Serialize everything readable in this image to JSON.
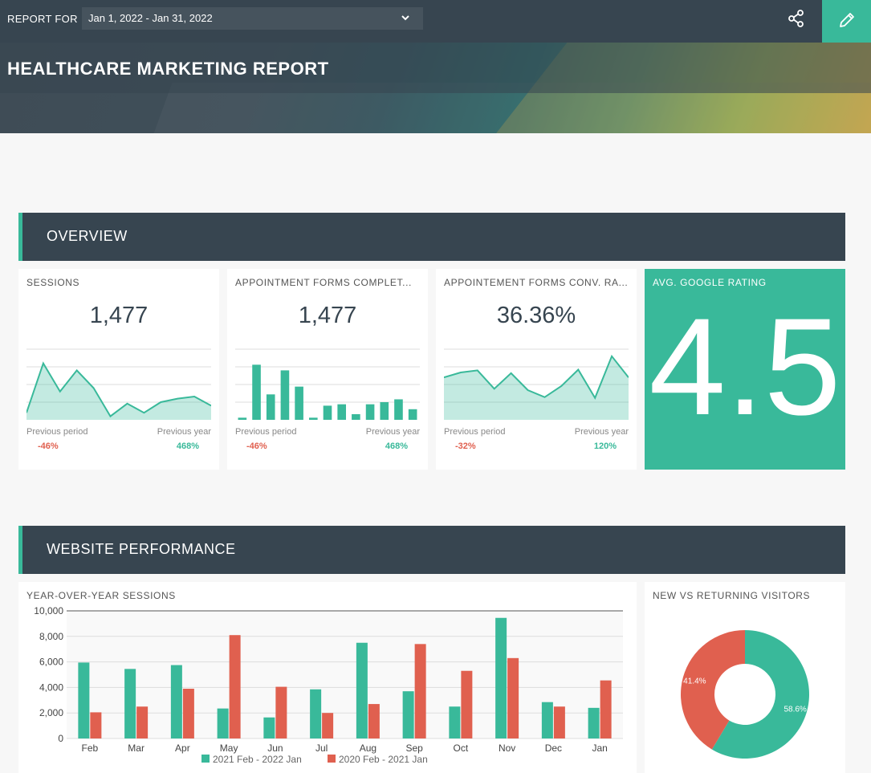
{
  "topbar": {
    "report_for_label": "REPORT FOR",
    "date_range": "Jan 1, 2022 - Jan 31, 2022",
    "accent": "#39b99a",
    "bar_color": "#374550"
  },
  "banner": {
    "title": "HEALTHCARE MARKETING REPORT"
  },
  "sections": {
    "overview": "OVERVIEW",
    "website": "WEBSITE PERFORMANCE"
  },
  "kpis": [
    {
      "title": "SESSIONS",
      "value": "1,477",
      "prev_period_label": "Previous period",
      "prev_year_label": "Previous year",
      "prev_period_delta": "-46%",
      "prev_year_delta": "468%",
      "spark_type": "area",
      "spark": [
        1,
        8,
        4,
        7,
        4.5,
        0.5,
        2.3,
        1,
        2.5,
        3,
        3.3,
        2
      ]
    },
    {
      "title": "APPOINTMENT FORMS COMPLET...",
      "value": "1,477",
      "prev_period_label": "Previous period",
      "prev_year_label": "Previous year",
      "prev_period_delta": "-46%",
      "prev_year_delta": "468%",
      "spark_type": "bar",
      "spark": [
        0.3,
        7.8,
        3.6,
        7,
        4.7,
        0.3,
        2,
        2.2,
        0.8,
        2.2,
        2.5,
        2.9,
        1.5
      ]
    },
    {
      "title": "APPOINTEMENT FORMS CONV. RA...",
      "value": "36.36%",
      "prev_period_label": "Previous period",
      "prev_year_label": "Previous year",
      "prev_period_delta": "-32%",
      "prev_year_delta": "120%",
      "spark_type": "area",
      "spark": [
        6,
        6.7,
        7,
        4.4,
        6.6,
        4.2,
        3.2,
        4.8,
        7.1,
        3.1,
        9,
        6
      ]
    }
  ],
  "rating": {
    "title": "AVG. GOOGLE RATING",
    "value": "4.5"
  },
  "yoy": {
    "title": "YEAR-OVER-YEAR SESSIONS",
    "chart_data": {
      "type": "bar",
      "title": "YEAR-OVER-YEAR SESSIONS",
      "categories": [
        "Feb",
        "Mar",
        "Apr",
        "May",
        "Jun",
        "Jul",
        "Aug",
        "Sep",
        "Oct",
        "Nov",
        "Dec",
        "Jan"
      ],
      "series": [
        {
          "name": "2021 Feb - 2022 Jan",
          "color": "#39b99a",
          "values": [
            5950,
            5450,
            5750,
            2350,
            1650,
            3850,
            7500,
            3700,
            2500,
            9450,
            2850,
            2400
          ]
        },
        {
          "name": "2020 Feb - 2021 Jan",
          "color": "#e0604f",
          "values": [
            2050,
            2500,
            3900,
            8100,
            4050,
            2000,
            2700,
            7400,
            5300,
            6300,
            2500,
            4550
          ]
        }
      ],
      "ylim": [
        0,
        10000
      ],
      "yticks": [
        "0",
        "2,000",
        "4,000",
        "6,000",
        "8,000",
        "10,000"
      ],
      "grid": true,
      "legend": "bottom"
    }
  },
  "visitors": {
    "title": "NEW VS RETURNING VISITORS",
    "chart_data": {
      "type": "pie",
      "slices": [
        {
          "label": "58.6%",
          "value": 58.6,
          "color": "#39b99a"
        },
        {
          "label": "41.4%",
          "value": 41.4,
          "color": "#e0604f"
        }
      ]
    }
  }
}
